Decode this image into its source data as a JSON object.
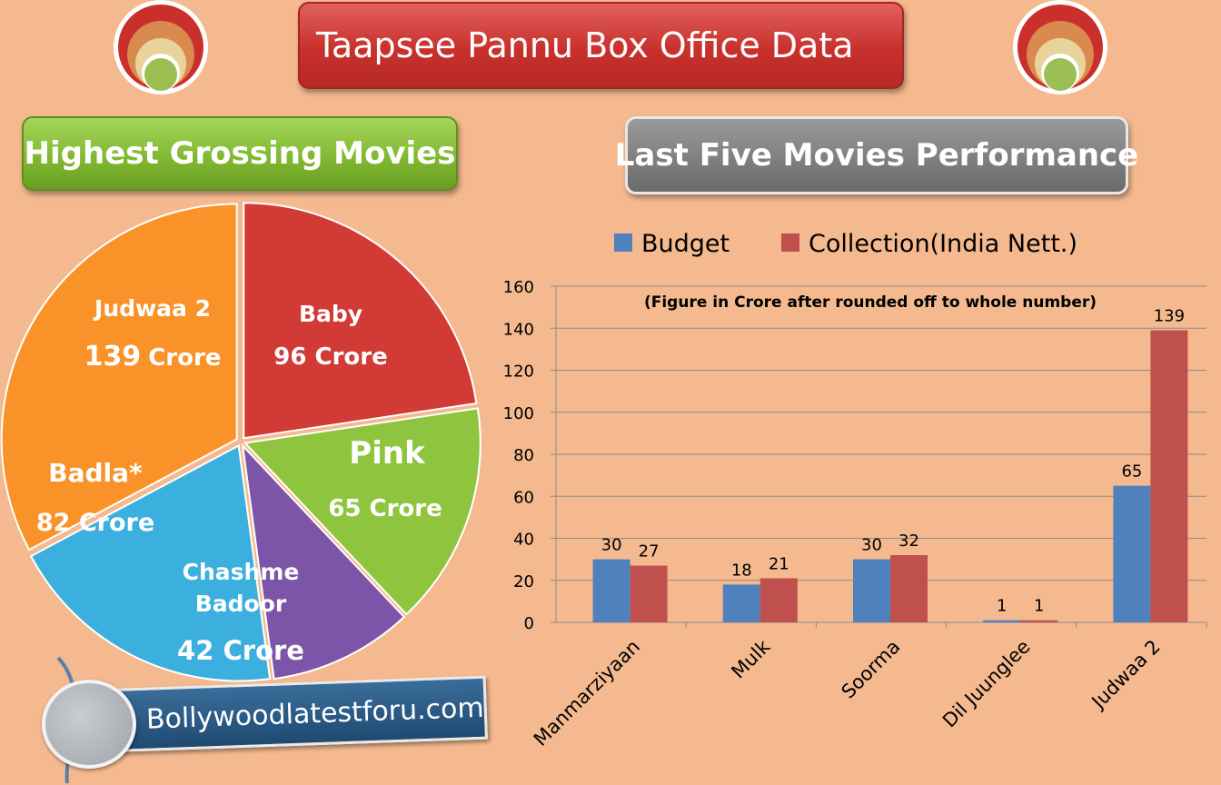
{
  "header": {
    "title": "Taapsee Pannu Box Office Data",
    "left_banner": "Highest Grossing Movies",
    "right_banner": "Last Five Movies Performance"
  },
  "footer": {
    "site": "Bollywoodlatestforu.com"
  },
  "colors": {
    "budget": "#4f81bd",
    "collection": "#c0504d",
    "pie_baby": "#d23a36",
    "pie_pink": "#8fc43f",
    "pie_chashme": "#7c55a8",
    "pie_badla": "#3bb0de",
    "pie_judwaa": "#f99329"
  },
  "chart_data": [
    {
      "type": "pie",
      "title": "Highest Grossing Movies",
      "slices": [
        {
          "name": "Baby",
          "value": 96,
          "unit": "Crore",
          "color": "#d23a36"
        },
        {
          "name": "Pink",
          "value": 65,
          "unit": "Crore",
          "color": "#8fc43f"
        },
        {
          "name": "Chashme Badoor",
          "value": 42,
          "unit": "Crore",
          "color": "#7c55a8"
        },
        {
          "name": "Badla*",
          "value": 82,
          "unit": "Crore",
          "color": "#3bb0de"
        },
        {
          "name": "Judwaa 2",
          "value": 139,
          "unit": "Crore",
          "color": "#f99329"
        }
      ],
      "labels": {
        "baby_name": "Baby",
        "baby_value": "96 Crore",
        "pink_name": "Pink",
        "pink_value": "65 Crore",
        "chashme_name_1": "Chashme",
        "chashme_name_2": "Badoor",
        "chashme_value": "42 Crore",
        "badla_name": "Badla*",
        "badla_value": "82 Crore",
        "judwaa_name": "Judwaa 2",
        "judwaa_value_num": "139",
        "judwaa_value_unit": "Crore"
      }
    },
    {
      "type": "bar",
      "title": "Last Five Movies Performance",
      "annotation": "(Figure in Crore after rounded off to whole number)",
      "categories": [
        "Manmarziyaan",
        "Mulk",
        "Soorma",
        "Dil Juunglee",
        "Judwaa 2"
      ],
      "series": [
        {
          "name": "Budget",
          "values": [
            30,
            18,
            30,
            1,
            65
          ],
          "color": "#4f81bd"
        },
        {
          "name": "Collection(India Nett.)",
          "values": [
            27,
            21,
            32,
            1,
            139
          ],
          "color": "#c0504d"
        }
      ],
      "ylim": [
        0,
        160
      ],
      "yticks": [
        0,
        20,
        40,
        60,
        80,
        100,
        120,
        140,
        160
      ],
      "legend": "top",
      "grid": true
    }
  ]
}
